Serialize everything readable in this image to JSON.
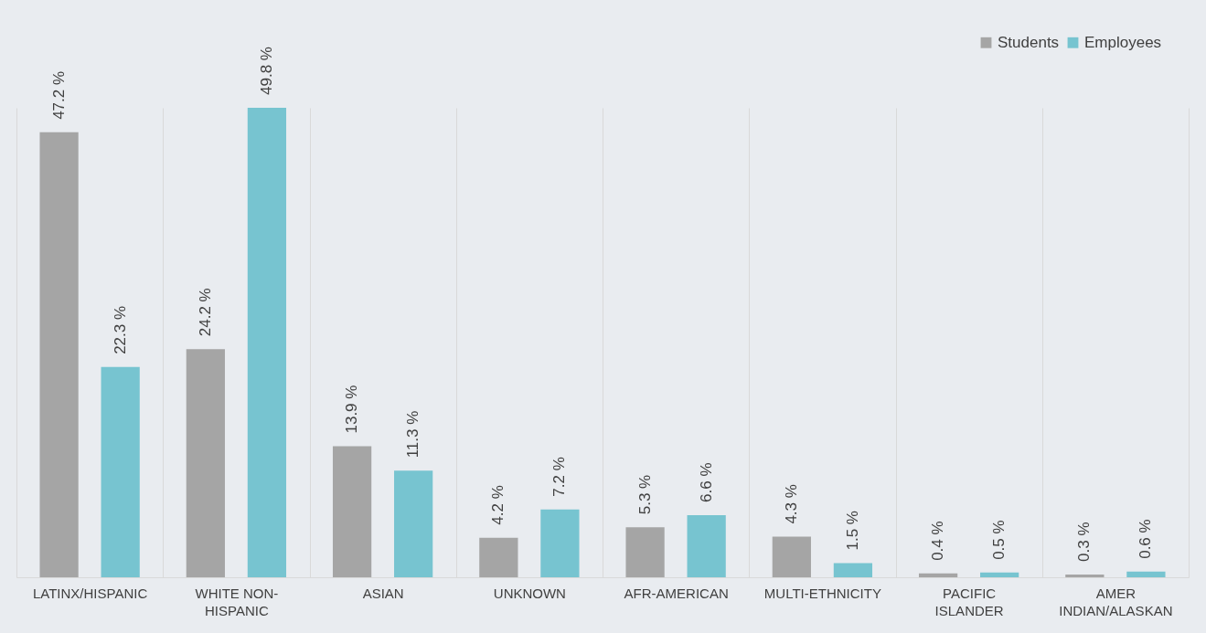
{
  "chart_data": {
    "type": "bar",
    "categories": [
      "LATINX/HISPANIC",
      "WHITE NON-HISPANIC",
      "ASIAN",
      "UNKNOWN",
      "AFR-AMERICAN",
      "MULTI-ETHNICITY",
      "PACIFIC ISLANDER",
      "AMER INDIAN/ALASKAN"
    ],
    "series": [
      {
        "name": "Students",
        "color": "#a5a5a5",
        "values": [
          47.2,
          24.2,
          13.9,
          4.2,
          5.3,
          4.3,
          0.4,
          0.3
        ],
        "value_labels": [
          "47.2 %",
          "24.2 %",
          "13.9 %",
          "4.2 %",
          "5.3 %",
          "4.3 %",
          "0.4 %",
          "0.3 %"
        ]
      },
      {
        "name": "Employees",
        "color": "#77c4d0",
        "values": [
          22.3,
          49.8,
          11.3,
          7.2,
          6.6,
          1.5,
          0.5,
          0.6
        ],
        "value_labels": [
          "22.3 %",
          "49.8 %",
          "11.3 %",
          "7.2 %",
          "6.6 %",
          "1.5 %",
          "0.5 %",
          "0.6 %"
        ]
      }
    ],
    "grid": "x",
    "legend": "top right"
  }
}
